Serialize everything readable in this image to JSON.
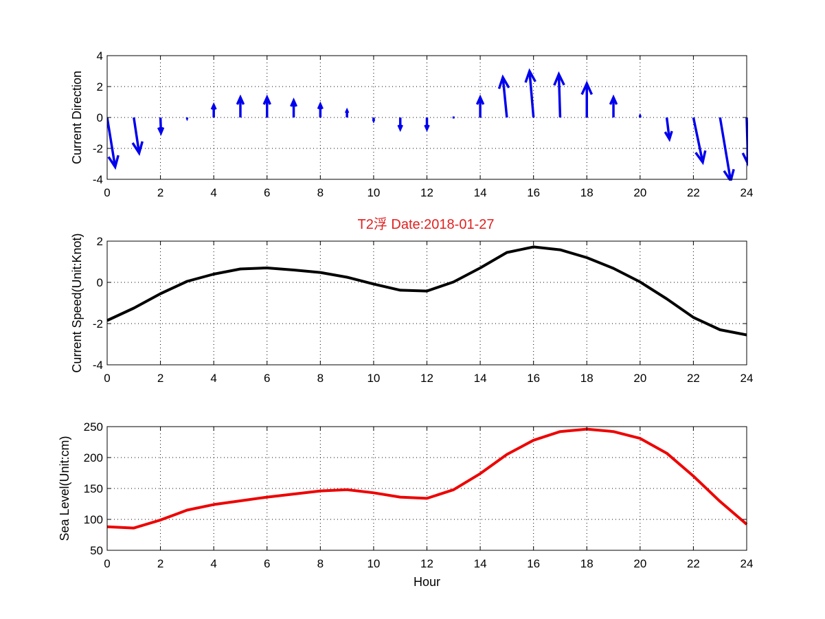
{
  "figure": {
    "title": "T2浮   Date:2018-01-27",
    "title_color": "#e02020"
  },
  "chart_data": [
    {
      "type": "quiver",
      "ylabel": "Current Direction",
      "xlabel": "",
      "xlim": [
        0,
        24
      ],
      "ylim": [
        -4,
        4
      ],
      "xticks": [
        0,
        2,
        4,
        6,
        8,
        10,
        12,
        14,
        16,
        18,
        20,
        22,
        24
      ],
      "yticks": [
        -4,
        -2,
        0,
        2,
        4
      ],
      "grid": true,
      "color": "#0000ee",
      "x": [
        0,
        1,
        2,
        3,
        4,
        5,
        6,
        7,
        8,
        9,
        10,
        11,
        12,
        13,
        14,
        15,
        16,
        17,
        18,
        19,
        20,
        21,
        22,
        23,
        24
      ],
      "u": [
        0.3,
        0.2,
        0.02,
        0,
        0,
        0,
        0,
        0,
        0,
        0,
        0,
        0,
        0,
        0,
        0,
        -0.15,
        -0.15,
        -0.05,
        0,
        0,
        0,
        0.1,
        0.35,
        0.4,
        0.05
      ],
      "v": [
        -3.2,
        -2.3,
        -1.0,
        -0.05,
        0.8,
        1.3,
        1.3,
        1.1,
        0.85,
        0.45,
        -0.2,
        -0.75,
        -0.75,
        0,
        1.3,
        2.6,
        3.0,
        2.8,
        2.2,
        1.3,
        0.1,
        -1.4,
        -2.9,
        -4.1,
        -3.0
      ]
    },
    {
      "type": "line",
      "ylabel": "Current Speed(Unit:Knot)",
      "xlabel": "",
      "xlim": [
        0,
        24
      ],
      "ylim": [
        -4,
        2
      ],
      "xticks": [
        0,
        2,
        4,
        6,
        8,
        10,
        12,
        14,
        16,
        18,
        20,
        22,
        24
      ],
      "yticks": [
        -4,
        -2,
        0,
        2
      ],
      "grid": true,
      "series": [
        {
          "color": "#000000",
          "x": [
            0,
            1,
            2,
            3,
            4,
            5,
            6,
            7,
            8,
            9,
            10,
            11,
            12,
            13,
            14,
            15,
            16,
            17,
            18,
            19,
            20,
            21,
            22,
            23,
            24
          ],
          "values": [
            -1.85,
            -1.25,
            -0.55,
            0.05,
            0.4,
            0.65,
            0.7,
            0.6,
            0.48,
            0.25,
            -0.08,
            -0.38,
            -0.42,
            0.02,
            0.7,
            1.45,
            1.72,
            1.58,
            1.2,
            0.68,
            0.02,
            -0.8,
            -1.7,
            -2.3,
            -2.55
          ]
        }
      ]
    },
    {
      "type": "line",
      "ylabel": "Sea Level(Unit:cm)",
      "xlabel": "Hour",
      "xlim": [
        0,
        24
      ],
      "ylim": [
        50,
        250
      ],
      "xticks": [
        0,
        2,
        4,
        6,
        8,
        10,
        12,
        14,
        16,
        18,
        20,
        22,
        24
      ],
      "yticks": [
        50,
        100,
        150,
        200,
        250
      ],
      "grid": true,
      "series": [
        {
          "color": "#ee0000",
          "x": [
            0,
            1,
            2,
            3,
            4,
            5,
            6,
            7,
            8,
            9,
            10,
            11,
            12,
            13,
            14,
            15,
            16,
            17,
            18,
            19,
            20,
            21,
            22,
            23,
            24
          ],
          "values": [
            88,
            86,
            99,
            115,
            124,
            130,
            136,
            141,
            146,
            148,
            143,
            136,
            134,
            148,
            174,
            205,
            228,
            242,
            246,
            242,
            231,
            207,
            170,
            129,
            92
          ]
        }
      ]
    }
  ]
}
